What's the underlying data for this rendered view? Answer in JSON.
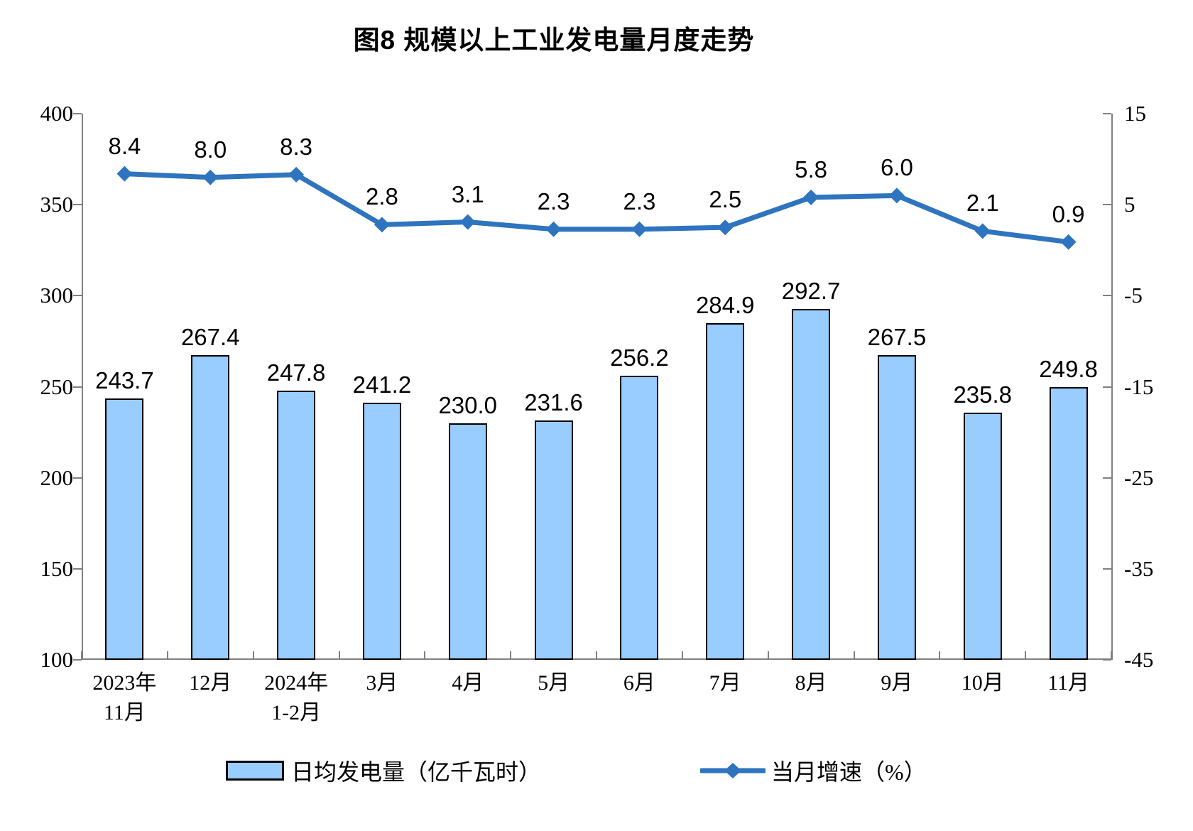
{
  "title": "图8 规模以上工业发电量月度走势",
  "chart_data": {
    "type": "combo",
    "title": "图8 规模以上工业发电量月度走势",
    "categories": [
      [
        "2023年",
        "11月"
      ],
      [
        "12月"
      ],
      [
        "2024年",
        "1-2月"
      ],
      [
        "3月"
      ],
      [
        "4月"
      ],
      [
        "5月"
      ],
      [
        "6月"
      ],
      [
        "7月"
      ],
      [
        "8月"
      ],
      [
        "9月"
      ],
      [
        "10月"
      ],
      [
        "11月"
      ]
    ],
    "series": [
      {
        "name": "日均发电量（亿千瓦时）",
        "type": "bar",
        "axis": "left",
        "values": [
          "243.7",
          "267.4",
          "247.8",
          "241.2",
          "230.0",
          "231.6",
          "256.2",
          "284.9",
          "292.7",
          "267.5",
          "235.8",
          "249.8"
        ]
      },
      {
        "name": "当月增速（%）",
        "type": "line",
        "axis": "right",
        "marker": "diamond",
        "values": [
          "8.4",
          "8.0",
          "8.3",
          "2.8",
          "3.1",
          "2.3",
          "2.3",
          "2.5",
          "5.8",
          "6.0",
          "2.1",
          "0.9"
        ]
      }
    ],
    "left_axis": {
      "min": 100,
      "max": 400,
      "ticks": [
        "400",
        "350",
        "300",
        "250",
        "200",
        "150",
        "100"
      ]
    },
    "right_axis": {
      "min": -45,
      "max": 15,
      "ticks": [
        "15",
        "5",
        "-5",
        "-15",
        "-25",
        "-35",
        "-45"
      ]
    },
    "grid": false,
    "legend_position": "bottom",
    "colors": {
      "bar_fill": "#99CCFF",
      "bar_border": "#000000",
      "line": "#2E74BE",
      "axis": "#808080",
      "text": "#000000"
    }
  }
}
